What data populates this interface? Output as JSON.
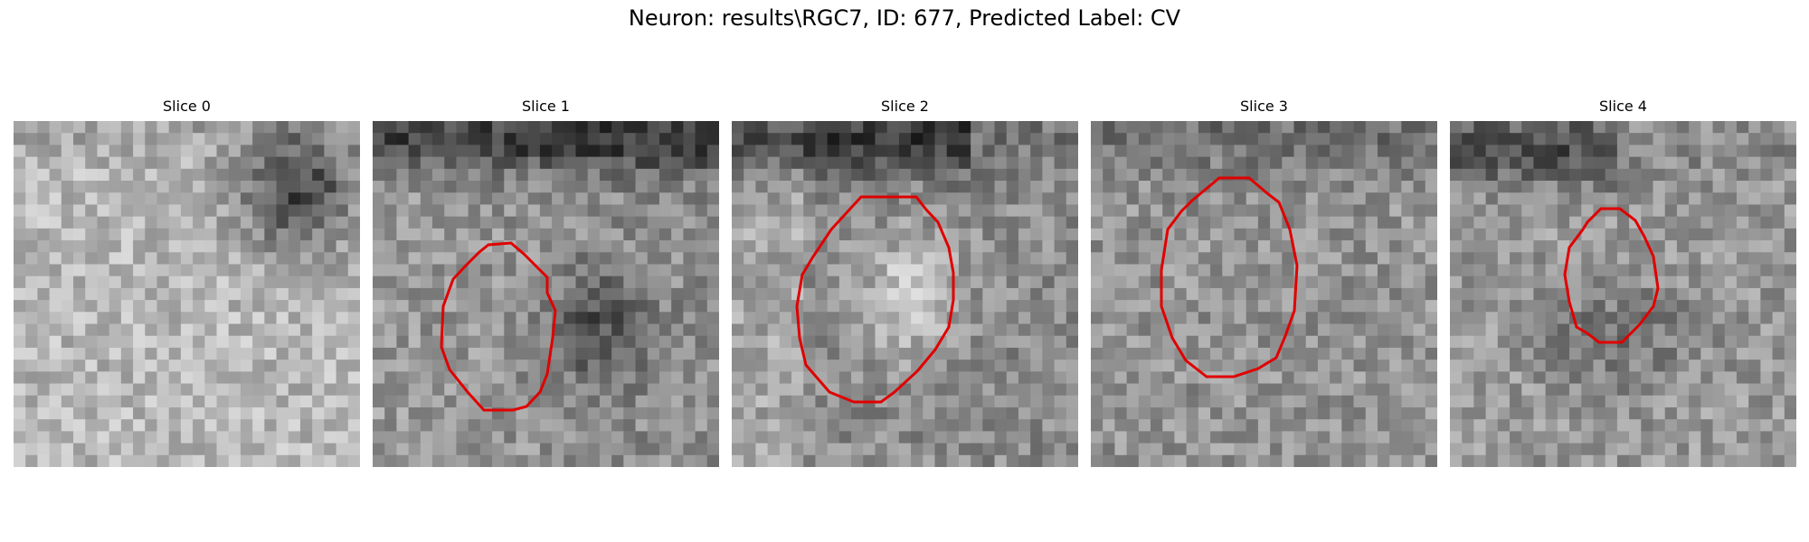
{
  "figure": {
    "title": "Neuron: results\\RGC7, ID: 677, Predicted Label: CV",
    "outline_color": "#e00000"
  },
  "slices": [
    {
      "title": "Slice 0",
      "has_outline": false
    },
    {
      "title": "Slice 1",
      "has_outline": true
    },
    {
      "title": "Slice 2",
      "has_outline": true
    },
    {
      "title": "Slice 3",
      "has_outline": true
    },
    {
      "title": "Slice 4",
      "has_outline": true
    }
  ]
}
